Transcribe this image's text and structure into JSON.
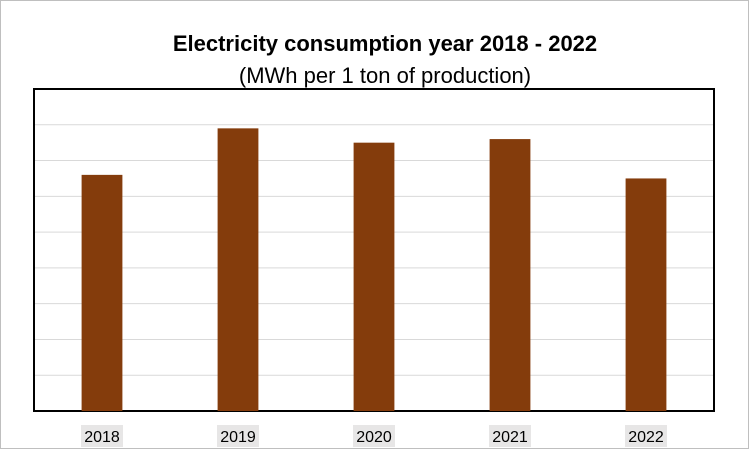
{
  "chart_data": {
    "type": "bar",
    "title": "Electricity consumption year 2018 - 2022",
    "subtitle": "(MWh per 1 ton of production)",
    "categories": [
      "2018",
      "2019",
      "2020",
      "2021",
      "2022"
    ],
    "values": [
      6.6,
      7.9,
      7.5,
      7.6,
      6.5
    ],
    "ylim": [
      0,
      9
    ],
    "gridlines": 9,
    "grid": true,
    "y_tick_labels_visible": false,
    "bar_color": "#843c0c",
    "grid_color": "#d9d9d9",
    "tick_label_bg": "#e7e6e6"
  }
}
